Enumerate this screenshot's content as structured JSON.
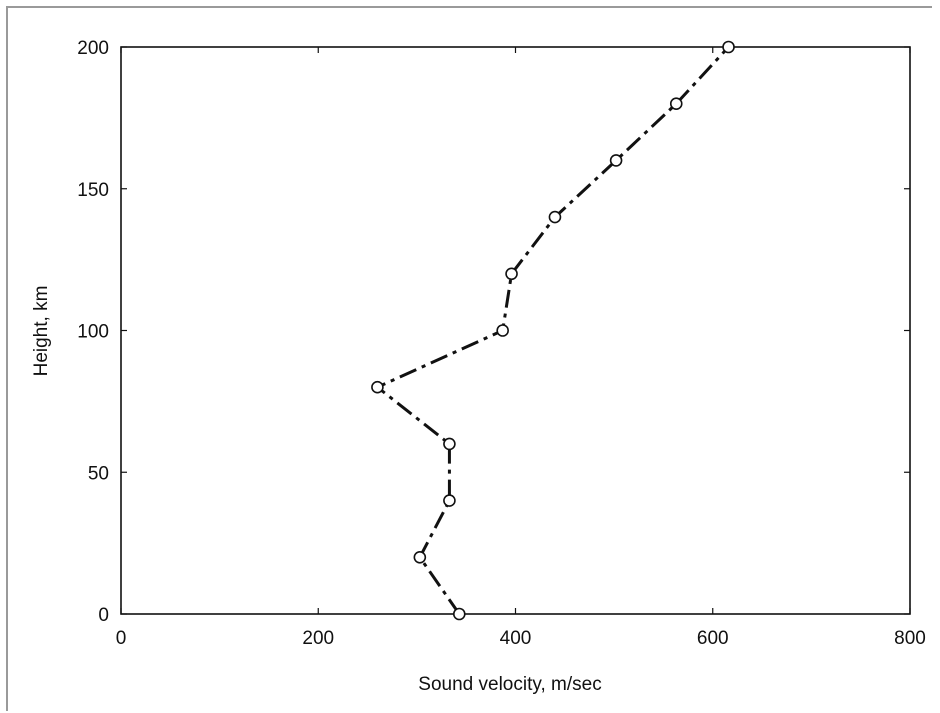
{
  "chart_data": {
    "type": "line",
    "xlabel": "Sound velocity, m/sec",
    "ylabel": "Height, km",
    "xlim": [
      0,
      800
    ],
    "ylim": [
      0,
      200
    ],
    "xticks": [
      "0",
      "200",
      "400",
      "600",
      "800"
    ],
    "yticks": [
      "0",
      "50",
      "100",
      "150",
      "200"
    ],
    "grid": false,
    "series": [
      {
        "line_style": "dash-dot",
        "marker": "open-circle",
        "color": "#111111",
        "points": [
          {
            "x": 343,
            "y": 0
          },
          {
            "x": 303,
            "y": 20
          },
          {
            "x": 333,
            "y": 40
          },
          {
            "x": 333,
            "y": 60
          },
          {
            "x": 260,
            "y": 80
          },
          {
            "x": 387,
            "y": 100
          },
          {
            "x": 396,
            "y": 120
          },
          {
            "x": 440,
            "y": 140
          },
          {
            "x": 502,
            "y": 160
          },
          {
            "x": 563,
            "y": 180
          },
          {
            "x": 616,
            "y": 200
          }
        ]
      }
    ]
  }
}
